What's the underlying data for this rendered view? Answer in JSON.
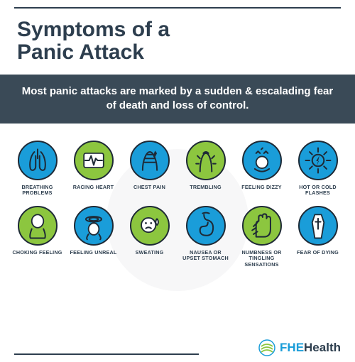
{
  "colors": {
    "dark": "#2d3e4e",
    "rule": "#2d3e4e",
    "green": "#8cc63f",
    "blue": "#1a9dd9",
    "text": "#2d3e4e",
    "white": "#ffffff",
    "border_dark": "#1e2a36"
  },
  "title": {
    "text": "Symptoms of a\nPanic Attack",
    "fontsize": 30,
    "color": "#2d3e4e"
  },
  "banner": {
    "text": "Most panic attacks are marked by a sudden & escalading fear of death and loss of control.",
    "fontsize": 15,
    "bg": "#3a4a57"
  },
  "label_color": "#2d3e4e",
  "icon_border": "#1e2a36",
  "symptoms": [
    {
      "label": "BREATHING PROBLEMS",
      "bg": "#1a9dd9",
      "icon": "lungs"
    },
    {
      "label": "RACING HEART",
      "bg": "#8cc63f",
      "icon": "heart"
    },
    {
      "label": "CHEST PAIN",
      "bg": "#1a9dd9",
      "icon": "chest"
    },
    {
      "label": "TREMBLING",
      "bg": "#8cc63f",
      "icon": "tremble"
    },
    {
      "label": "FEELING DIZZY",
      "bg": "#1a9dd9",
      "icon": "dizzy"
    },
    {
      "label": "HOT OR COLD FLASHES",
      "bg": "#1a9dd9",
      "icon": "flash"
    },
    {
      "label": "CHOKING FEELING",
      "bg": "#8cc63f",
      "icon": "choke"
    },
    {
      "label": "FEELING UNREAL",
      "bg": "#1a9dd9",
      "icon": "unreal"
    },
    {
      "label": "SWEATING",
      "bg": "#8cc63f",
      "icon": "sweat"
    },
    {
      "label": "NAUSEA OR\nUPSET STOMACH",
      "bg": "#1a9dd9",
      "icon": "stomach"
    },
    {
      "label": "NUMBNESS OR\nTINGLING SENSATIONS",
      "bg": "#8cc63f",
      "icon": "hand"
    },
    {
      "label": "FEAR OF DYING",
      "bg": "#1a9dd9",
      "icon": "coffin"
    }
  ],
  "logo": {
    "prefix": "FHE",
    "suffix": "Health",
    "prefix_color": "#1a9dd9",
    "suffix_color": "#2d3e4e",
    "fontsize": 17
  }
}
